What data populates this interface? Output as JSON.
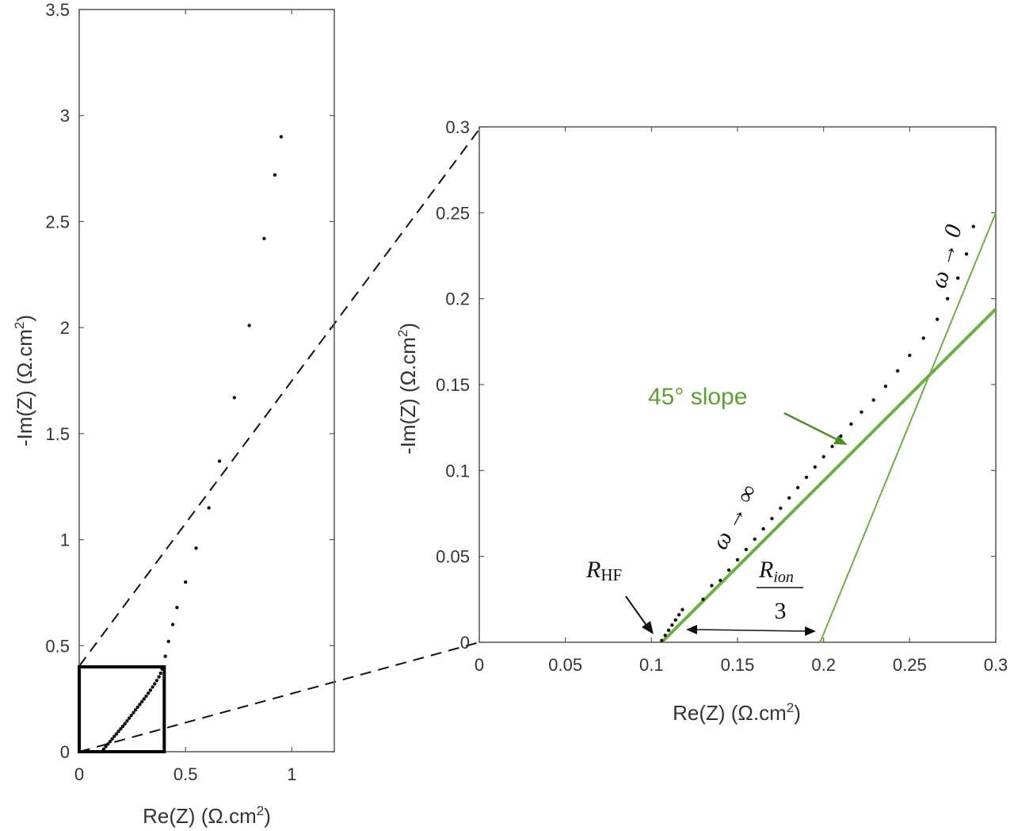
{
  "colors": {
    "green": "#6cad45",
    "dark_green": "#4f8a2e",
    "marker": "#111111",
    "axis": "#555555",
    "text": "#333333"
  },
  "chart_data": [
    {
      "type": "scatter",
      "name_key": "overview",
      "xlabel_main": "Re(Z) (Ω.cm",
      "xlabel_sup": "2",
      "xlabel_tail": ")",
      "ylabel_main": "-Im(Z) (Ω.cm",
      "ylabel_sup": "2",
      "ylabel_tail": ")",
      "xlim": [
        0,
        1.2
      ],
      "ylim": [
        0,
        3.5
      ],
      "xticks": [
        0,
        0.5,
        1
      ],
      "xtick_labels": [
        "0",
        "0.5",
        "1"
      ],
      "yticks": [
        0,
        0.5,
        1,
        1.5,
        2,
        2.5,
        3,
        3.5
      ],
      "ytick_labels": [
        "0",
        "0.5",
        "1",
        "1.5",
        "2",
        "2.5",
        "3",
        "3.5"
      ],
      "grid": false,
      "zoom_box": {
        "x": [
          0,
          0.4
        ],
        "y": [
          0,
          0.4
        ]
      },
      "points": [
        [
          0.105,
          0
        ],
        [
          0.115,
          0.012
        ],
        [
          0.125,
          0.024
        ],
        [
          0.135,
          0.036
        ],
        [
          0.145,
          0.048
        ],
        [
          0.155,
          0.06
        ],
        [
          0.165,
          0.072
        ],
        [
          0.175,
          0.084
        ],
        [
          0.185,
          0.096
        ],
        [
          0.195,
          0.108
        ],
        [
          0.205,
          0.12
        ],
        [
          0.215,
          0.132
        ],
        [
          0.225,
          0.145
        ],
        [
          0.235,
          0.158
        ],
        [
          0.245,
          0.171
        ],
        [
          0.255,
          0.184
        ],
        [
          0.265,
          0.197
        ],
        [
          0.275,
          0.21
        ],
        [
          0.285,
          0.223
        ],
        [
          0.295,
          0.236
        ],
        [
          0.305,
          0.249
        ],
        [
          0.315,
          0.262
        ],
        [
          0.325,
          0.276
        ],
        [
          0.335,
          0.29
        ],
        [
          0.345,
          0.305
        ],
        [
          0.355,
          0.32
        ],
        [
          0.365,
          0.336
        ],
        [
          0.375,
          0.353
        ],
        [
          0.383,
          0.37
        ],
        [
          0.39,
          0.39
        ],
        [
          0.405,
          0.45
        ],
        [
          0.42,
          0.52
        ],
        [
          0.44,
          0.6
        ],
        [
          0.46,
          0.68
        ],
        [
          0.5,
          0.8
        ],
        [
          0.55,
          0.96
        ],
        [
          0.61,
          1.15
        ],
        [
          0.66,
          1.37
        ],
        [
          0.73,
          1.67
        ],
        [
          0.8,
          2.01
        ],
        [
          0.87,
          2.42
        ],
        [
          0.92,
          2.72
        ],
        [
          0.95,
          2.9
        ]
      ]
    },
    {
      "type": "scatter",
      "name_key": "zoom",
      "xlabel_main": "Re(Z) (Ω.cm",
      "xlabel_sup": "2",
      "xlabel_tail": ")",
      "ylabel_main": "-Im(Z) (Ω.cm",
      "ylabel_sup": "2",
      "ylabel_tail": ")",
      "xlim": [
        0,
        0.3
      ],
      "ylim": [
        0,
        0.3
      ],
      "xticks": [
        0,
        0.05,
        0.1,
        0.15,
        0.2,
        0.25,
        0.3
      ],
      "xtick_labels": [
        "0",
        "0.05",
        "0.1",
        "0.15",
        "0.2",
        "0.25",
        "0.3"
      ],
      "yticks": [
        0,
        0.05,
        0.1,
        0.15,
        0.2,
        0.25,
        0.3
      ],
      "ytick_labels": [
        "0",
        "0.05",
        "0.1",
        "0.15",
        "0.2",
        "0.25",
        "0.3"
      ],
      "grid": false,
      "points": [
        [
          0.106,
          0.001
        ],
        [
          0.108,
          0.004
        ],
        [
          0.11,
          0.007
        ],
        [
          0.112,
          0.01
        ],
        [
          0.114,
          0.013
        ],
        [
          0.116,
          0.016
        ],
        [
          0.118,
          0.019
        ],
        [
          0.13,
          0.025
        ],
        [
          0.135,
          0.033
        ],
        [
          0.14,
          0.036
        ],
        [
          0.145,
          0.042
        ],
        [
          0.15,
          0.048
        ],
        [
          0.155,
          0.054
        ],
        [
          0.16,
          0.06
        ],
        [
          0.165,
          0.066
        ],
        [
          0.17,
          0.072
        ],
        [
          0.175,
          0.078
        ],
        [
          0.18,
          0.084
        ],
        [
          0.185,
          0.09
        ],
        [
          0.19,
          0.096
        ],
        [
          0.195,
          0.102
        ],
        [
          0.2,
          0.108
        ],
        [
          0.205,
          0.114
        ],
        [
          0.21,
          0.12
        ],
        [
          0.216,
          0.127
        ],
        [
          0.222,
          0.134
        ],
        [
          0.229,
          0.141
        ],
        [
          0.236,
          0.149
        ],
        [
          0.243,
          0.158
        ],
        [
          0.25,
          0.167
        ],
        [
          0.258,
          0.177
        ],
        [
          0.266,
          0.188
        ],
        [
          0.272,
          0.2
        ],
        [
          0.278,
          0.212
        ],
        [
          0.283,
          0.226
        ],
        [
          0.287,
          0.242
        ]
      ],
      "lines": [
        {
          "label_key": "slope45",
          "from": [
            0.106,
            0
          ],
          "to": [
            0.3,
            0.194
          ],
          "width": 4
        },
        {
          "label_key": "steep",
          "from": [
            0.198,
            0
          ],
          "to": [
            0.3,
            0.25
          ],
          "width": 2
        }
      ],
      "annotations": {
        "slope": "45° slope",
        "omega_high": "ω → ∞",
        "omega_low": "ω → 0",
        "r_hf_main": "R",
        "r_hf_sub": "HF",
        "r_ion_main": "R",
        "r_ion_sub": "ion",
        "r_ion_den": "3"
      }
    }
  ]
}
